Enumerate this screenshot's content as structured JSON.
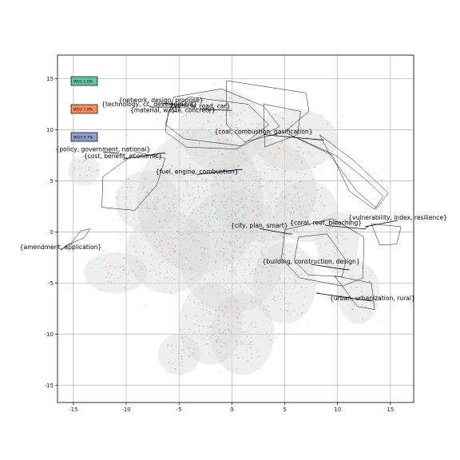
{
  "chart_data": {
    "type": "scatter",
    "title": "",
    "xlabel": "",
    "ylabel": "",
    "xlim": [
      -16.5,
      17.2
    ],
    "ylim": [
      -16.7,
      17.3
    ],
    "x_ticks": [
      -15,
      -10,
      -5,
      0,
      5,
      10,
      15
    ],
    "y_ticks": [
      -15,
      -10,
      -5,
      0,
      5,
      10,
      15
    ],
    "grid": true,
    "legend_placement": "upper-left",
    "series": [
      {
        "name": "WG1 1.6%",
        "color": "#66c2a5"
      },
      {
        "name": "WG2 1.8%",
        "color": "#fc8d62"
      },
      {
        "name": "WG3 0.7%",
        "color": "#8da0cb"
      }
    ],
    "background_points_color": "#c8c8c8",
    "annotations": [
      {
        "text": "{network, design, propose}",
        "x": -6.7,
        "y": 12.7,
        "px": -4.8,
        "py": 12.4
      },
      {
        "text": "{technology, cc, development}",
        "x": -7.8,
        "y": 12.3,
        "px": -5.2,
        "py": 12.2
      },
      {
        "text": "{vehicle, road, car}",
        "x": -3.0,
        "y": 12.1,
        "px": -0.3,
        "py": 11.9
      },
      {
        "text": "{material, waste, concrete}",
        "x": -5.6,
        "y": 11.7,
        "px": -5.5,
        "py": 11.8
      },
      {
        "text": "{coal, combustion, gasification}",
        "x": 3.0,
        "y": 9.6,
        "px": 8.4,
        "py": 9.0
      },
      {
        "text": "{policy, government, national}",
        "x": -12.2,
        "y": 7.9,
        "px": -11.0,
        "py": 7.7
      },
      {
        "text": "{cost, benefit, economic}",
        "x": -10.3,
        "y": 7.2,
        "px": -6.6,
        "py": 7.7
      },
      {
        "text": "{fuel, engine, combustion}",
        "x": -3.3,
        "y": 5.7,
        "px": 0.7,
        "py": 6.1
      },
      {
        "text": "{vulnerability, index, resilience}",
        "x": 15.7,
        "y": 1.2,
        "px": 12.6,
        "py": 0.5
      },
      {
        "text": "{coral, reef, bleaching}",
        "x": 8.9,
        "y": 0.7,
        "px": 12.4,
        "py": 0.3
      },
      {
        "text": "{city, plan, smart}",
        "x": 2.6,
        "y": 0.4,
        "px": 5.4,
        "py": -0.2
      },
      {
        "text": "{amendment, application}",
        "x": -16.2,
        "y": -1.7,
        "px": -15.4,
        "py": -1.2
      },
      {
        "text": "{building, construction, design}",
        "x": 7.5,
        "y": -3.1,
        "px": 10.8,
        "py": -3.7
      },
      {
        "text": "{urban, urbanization, rural}",
        "x": 13.3,
        "y": -6.7,
        "px": 8.0,
        "py": -6.0
      }
    ]
  }
}
